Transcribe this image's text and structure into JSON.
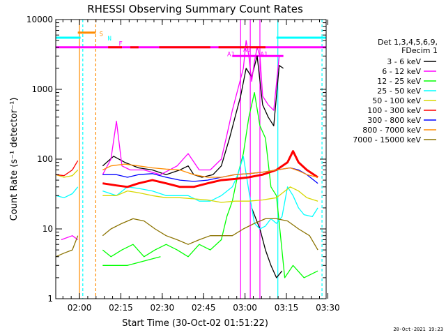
{
  "colors": {
    "bg": "#ffffff",
    "axis": "#000000",
    "black": "#000000",
    "magenta": "#ff00ff",
    "green": "#00ff00",
    "cyan": "#00ffff",
    "yellow": "#d7d700",
    "red": "#ff0000",
    "blue": "#0000ff",
    "orange": "#ff8c00",
    "olive": "#8b7300"
  },
  "chart_data": {
    "type": "line",
    "title": "RHESSI Observing Summary Count Rates",
    "xlabel": "Start Time (30-Oct-02 01:51:22)",
    "ylabel": "Count Rate (s⁻¹ detector⁻¹)",
    "x_unit": "minutes since 01:51:22",
    "xlim": [
      0,
      98
    ],
    "ylim": [
      1,
      10000
    ],
    "yscale": "log",
    "x_ticks": [
      {
        "label": "02:00",
        "x": 8.6
      },
      {
        "label": "02:15",
        "x": 23.6
      },
      {
        "label": "02:30",
        "x": 38.6
      },
      {
        "label": "02:45",
        "x": 53.6
      },
      {
        "label": "03:00",
        "x": 68.6
      },
      {
        "label": "03:15",
        "x": 83.6
      },
      {
        "label": "03:30",
        "x": 98.6
      }
    ],
    "y_ticks": [
      "1",
      "10",
      "100",
      "1000",
      "10000"
    ],
    "legend_title": [
      "Det 1,3,4,5,6,9,",
      "FDecim 1"
    ],
    "legend_position": "right",
    "series": [
      {
        "name": "3 - 6 keV",
        "color": "black",
        "segments": [
          [
            [
              17,
              80
            ],
            [
              21,
              110
            ],
            [
              25,
              90
            ],
            [
              30,
              75
            ],
            [
              35,
              70
            ],
            [
              40,
              60
            ],
            [
              45,
              70
            ],
            [
              48,
              80
            ],
            [
              50,
              60
            ],
            [
              53,
              55
            ],
            [
              57,
              60
            ],
            [
              60,
              80
            ],
            [
              63,
              200
            ],
            [
              65,
              400
            ],
            [
              67,
              800
            ],
            [
              69,
              2000
            ],
            [
              71,
              1500
            ],
            [
              73,
              3000
            ],
            [
              75,
              600
            ],
            [
              77,
              400
            ],
            [
              79,
              300
            ],
            [
              81,
              2200
            ],
            [
              82.5,
              2000
            ]
          ],
          [
            [
              71,
              20
            ],
            [
              74,
              10
            ],
            [
              76,
              5
            ],
            [
              78,
              3
            ],
            [
              80,
              2
            ],
            [
              82,
              2.5
            ]
          ]
        ]
      },
      {
        "name": "6 - 12 keV",
        "color": "magenta",
        "segments": [
          [
            [
              17,
              60
            ],
            [
              20,
              100
            ],
            [
              22,
              350
            ],
            [
              24,
              80
            ],
            [
              27,
              70
            ],
            [
              32,
              70
            ],
            [
              38,
              60
            ],
            [
              44,
              80
            ],
            [
              48,
              120
            ],
            [
              52,
              70
            ],
            [
              56,
              70
            ],
            [
              60,
              100
            ],
            [
              62,
              220
            ],
            [
              64,
              500
            ],
            [
              66,
              1000
            ],
            [
              68,
              2000
            ],
            [
              69,
              5000
            ],
            [
              70,
              3000
            ],
            [
              71,
              1300
            ],
            [
              72,
              2500
            ],
            [
              73,
              4000
            ],
            [
              74,
              3000
            ],
            [
              75,
              800
            ],
            [
              77,
              600
            ],
            [
              79,
              500
            ],
            [
              81,
              3000
            ]
          ],
          [
            [
              2,
              7
            ],
            [
              6,
              8
            ],
            [
              8,
              7
            ]
          ]
        ]
      },
      {
        "name": "12 - 25 keV",
        "color": "green",
        "segments": [
          [
            [
              17,
              5
            ],
            [
              20,
              4
            ],
            [
              24,
              5
            ],
            [
              28,
              6
            ],
            [
              32,
              4
            ],
            [
              36,
              5
            ],
            [
              40,
              6
            ],
            [
              44,
              5
            ],
            [
              48,
              4
            ],
            [
              52,
              6
            ],
            [
              56,
              5
            ],
            [
              60,
              7
            ],
            [
              62,
              15
            ],
            [
              64,
              25
            ],
            [
              66,
              60
            ],
            [
              68,
              120
            ],
            [
              70,
              400
            ],
            [
              72,
              900
            ],
            [
              74,
              300
            ],
            [
              76,
              200
            ],
            [
              78,
              40
            ],
            [
              80,
              30
            ],
            [
              83,
              2
            ],
            [
              86,
              3
            ],
            [
              90,
              2
            ],
            [
              95,
              2.5
            ]
          ],
          [
            [
              17,
              3
            ],
            [
              26,
              3
            ],
            [
              38,
              4
            ]
          ]
        ]
      },
      {
        "name": "25 - 50 keV",
        "color": "cyan",
        "segments": [
          [
            [
              0,
              30
            ],
            [
              3,
              28
            ],
            [
              6,
              32
            ],
            [
              8,
              40
            ]
          ],
          [
            [
              17,
              35
            ],
            [
              22,
              30
            ],
            [
              26,
              40
            ],
            [
              30,
              38
            ],
            [
              35,
              35
            ],
            [
              40,
              30
            ],
            [
              44,
              30
            ],
            [
              48,
              30
            ],
            [
              52,
              25
            ],
            [
              56,
              25
            ],
            [
              60,
              30
            ],
            [
              64,
              40
            ],
            [
              66,
              60
            ],
            [
              68,
              110
            ],
            [
              70,
              35
            ],
            [
              72,
              12
            ],
            [
              74,
              10
            ],
            [
              76,
              11
            ],
            [
              78,
              14
            ],
            [
              80,
              12
            ],
            [
              82,
              15
            ],
            [
              84,
              40
            ],
            [
              86,
              30
            ],
            [
              88,
              20
            ],
            [
              90,
              16
            ],
            [
              93,
              15
            ],
            [
              95,
              20
            ]
          ]
        ]
      },
      {
        "name": "50 - 100 keV",
        "color": "yellow",
        "segments": [
          [
            [
              0,
              60
            ],
            [
              3,
              55
            ],
            [
              6,
              58
            ],
            [
              8,
              70
            ]
          ],
          [
            [
              17,
              30
            ],
            [
              22,
              30
            ],
            [
              26,
              35
            ],
            [
              30,
              33
            ],
            [
              35,
              30
            ],
            [
              40,
              28
            ],
            [
              45,
              28
            ],
            [
              50,
              27
            ],
            [
              55,
              26
            ],
            [
              60,
              24
            ],
            [
              65,
              25
            ],
            [
              70,
              25
            ],
            [
              75,
              26
            ],
            [
              80,
              28
            ],
            [
              85,
              40
            ],
            [
              88,
              35
            ],
            [
              91,
              28
            ],
            [
              95,
              25
            ]
          ]
        ]
      },
      {
        "name": "100 - 300 keV",
        "color": "red",
        "segments": [
          [
            [
              0,
              60
            ],
            [
              3,
              58
            ],
            [
              6,
              70
            ],
            [
              8,
              95
            ]
          ],
          [
            [
              17,
              45
            ],
            [
              22,
              42
            ],
            [
              26,
              40
            ],
            [
              30,
              45
            ],
            [
              35,
              50
            ],
            [
              40,
              45
            ],
            [
              45,
              40
            ],
            [
              50,
              40
            ],
            [
              55,
              45
            ],
            [
              60,
              50
            ],
            [
              65,
              52
            ],
            [
              70,
              55
            ],
            [
              75,
              60
            ],
            [
              80,
              70
            ],
            [
              84,
              90
            ],
            [
              86,
              130
            ],
            [
              88,
              90
            ],
            [
              91,
              70
            ],
            [
              95,
              55
            ]
          ],
          [
            [
              19,
              4000
            ],
            [
              24,
              4000
            ]
          ],
          [
            [
              27,
              4000
            ],
            [
              30,
              4000
            ]
          ],
          [
            [
              37.5,
              4000
            ],
            [
              56,
              4000
            ]
          ],
          [
            [
              59,
              4000
            ],
            [
              76,
              4000
            ]
          ]
        ]
      },
      {
        "name": "300 - 800 keV",
        "color": "blue",
        "segments": [
          [
            [
              17,
              60
            ],
            [
              22,
              60
            ],
            [
              26,
              55
            ],
            [
              30,
              60
            ],
            [
              35,
              62
            ],
            [
              40,
              55
            ],
            [
              45,
              50
            ],
            [
              50,
              48
            ],
            [
              55,
              50
            ],
            [
              60,
              55
            ],
            [
              65,
              60
            ],
            [
              70,
              62
            ],
            [
              75,
              65
            ],
            [
              80,
              70
            ],
            [
              85,
              75
            ],
            [
              88,
              70
            ],
            [
              91,
              60
            ],
            [
              95,
              45
            ]
          ]
        ]
      },
      {
        "name": "800 - 7000 keV",
        "color": "orange",
        "segments": [
          [
            [
              17,
              70
            ],
            [
              20,
              80
            ],
            [
              25,
              85
            ],
            [
              30,
              80
            ],
            [
              35,
              75
            ],
            [
              40,
              72
            ],
            [
              45,
              70
            ],
            [
              50,
              60
            ],
            [
              55,
              55
            ],
            [
              60,
              55
            ],
            [
              65,
              60
            ],
            [
              70,
              62
            ],
            [
              75,
              65
            ],
            [
              80,
              70
            ],
            [
              85,
              75
            ],
            [
              88,
              68
            ],
            [
              91,
              60
            ],
            [
              95,
              55
            ]
          ]
        ]
      },
      {
        "name": "7000 - 15000 keV",
        "color": "olive",
        "segments": [
          [
            [
              0,
              4
            ],
            [
              3,
              4.5
            ],
            [
              6,
              5
            ],
            [
              8,
              8
            ]
          ],
          [
            [
              17,
              8
            ],
            [
              20,
              10
            ],
            [
              24,
              12
            ],
            [
              28,
              14
            ],
            [
              32,
              13
            ],
            [
              36,
              10
            ],
            [
              40,
              8
            ],
            [
              44,
              7
            ],
            [
              48,
              6
            ],
            [
              52,
              7
            ],
            [
              56,
              8
            ],
            [
              60,
              8
            ],
            [
              64,
              8
            ],
            [
              68,
              10
            ],
            [
              72,
              12
            ],
            [
              76,
              14
            ],
            [
              80,
              14
            ],
            [
              84,
              13
            ],
            [
              88,
              10
            ],
            [
              92,
              8
            ],
            [
              95,
              5
            ]
          ]
        ]
      }
    ],
    "annotations": [
      {
        "label": "S",
        "x": 16.5,
        "y": 5800,
        "color": "orange"
      },
      {
        "label": "N",
        "x": 19.5,
        "y": 5000,
        "color": "cyan"
      },
      {
        "label": "F",
        "x": 23.5,
        "y": 4200,
        "color": "magenta"
      },
      {
        "label": "A1",
        "x": 63.5,
        "y": 3000,
        "color": "magenta"
      },
      {
        "label": "A0",
        "x": 69.3,
        "y": 3450,
        "color": "magenta"
      },
      {
        "label": "A1",
        "x": 75.5,
        "y": 3000,
        "color": "magenta"
      }
    ],
    "flag_lines": [
      {
        "color": "cyan",
        "y": 5500,
        "segments": [
          [
            0,
            9
          ],
          [
            80,
            98
          ]
        ]
      },
      {
        "color": "orange",
        "y": 6500,
        "segments": [
          [
            8,
            14.5
          ]
        ]
      },
      {
        "color": "magenta",
        "y": 4000,
        "segments": [
          [
            0,
            98
          ]
        ]
      },
      {
        "color": "magenta",
        "y": 3000,
        "segments": [
          [
            64,
            82.5
          ]
        ]
      }
    ],
    "vlines": [
      {
        "x": 8.6,
        "color": "orange",
        "style": "solid"
      },
      {
        "x": 9.8,
        "color": "cyan",
        "style": "dashed"
      },
      {
        "x": 14.5,
        "color": "orange",
        "style": "dashed"
      },
      {
        "x": 67,
        "color": "magenta",
        "style": "solid"
      },
      {
        "x": 70.5,
        "color": "magenta",
        "style": "solid"
      },
      {
        "x": 74,
        "color": "magenta",
        "style": "solid"
      },
      {
        "x": 80.5,
        "color": "cyan",
        "style": "solid"
      },
      {
        "x": 96.5,
        "color": "cyan",
        "style": "dashed"
      }
    ],
    "footer_date": "20-Oct-2021 19:23"
  }
}
